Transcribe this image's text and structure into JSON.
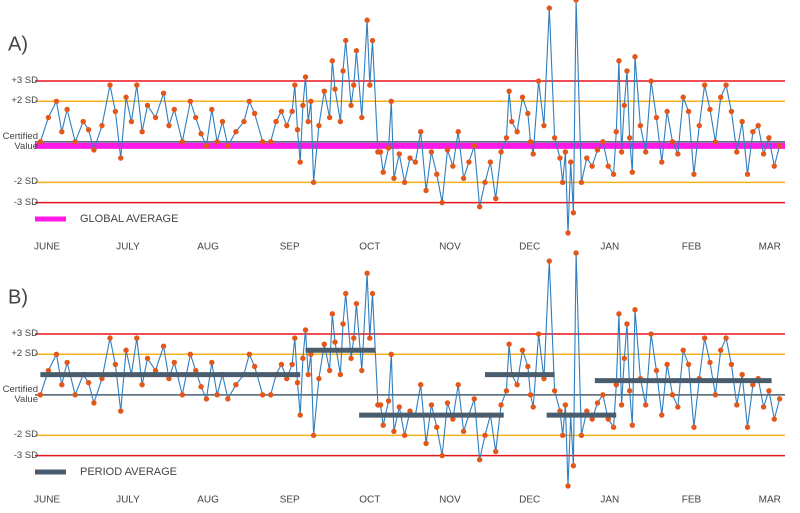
{
  "chart_data": [
    {
      "type": "line",
      "label": "A)",
      "x": [
        2,
        5,
        8,
        10,
        12,
        15,
        18,
        20,
        22,
        25,
        28,
        30,
        32,
        34,
        36,
        38,
        40,
        42,
        45,
        48,
        50,
        52,
        55,
        58,
        60,
        62,
        64,
        66,
        68,
        70,
        72,
        75,
        78,
        80,
        82,
        85,
        88,
        90,
        92,
        94,
        96,
        97,
        98,
        99,
        100,
        101,
        102,
        103,
        104,
        106,
        108,
        110,
        111,
        112,
        114,
        115,
        116,
        118,
        119,
        120,
        122,
        124,
        125,
        126,
        128,
        129,
        130,
        132,
        133,
        134,
        136,
        138,
        140,
        142,
        144,
        146,
        148,
        150,
        152,
        154,
        156,
        158,
        160,
        162,
        164,
        166,
        168,
        170,
        172,
        174,
        176,
        177,
        178,
        180,
        182,
        184,
        185,
        186,
        188,
        190,
        192,
        194,
        196,
        197,
        198,
        199,
        200,
        201,
        202,
        204,
        206,
        208,
        210,
        212,
        214,
        216,
        217,
        218,
        219,
        220,
        221,
        222,
        223,
        224,
        226,
        228,
        230,
        232,
        234,
        236,
        238,
        240,
        242,
        244,
        246,
        248,
        250,
        252,
        254,
        256,
        258,
        260,
        262,
        264,
        266,
        268,
        270,
        272,
        274,
        276,
        278
      ],
      "series": [
        {
          "color": "#2e7ec0",
          "marker_color": "#e4571b",
          "values": [
            0,
            1.2,
            2.0,
            0.5,
            1.6,
            0,
            1.0,
            0.6,
            -0.4,
            0.8,
            2.8,
            1.5,
            -0.8,
            2.2,
            1.0,
            2.8,
            0.5,
            1.8,
            1.2,
            2.4,
            0.8,
            1.6,
            0,
            2.0,
            1.2,
            0.4,
            -0.2,
            1.6,
            0,
            1.0,
            -0.2,
            0.5,
            1.0,
            2.0,
            1.4,
            0,
            0,
            1.0,
            1.5,
            0.8,
            1.5,
            2.8,
            0.6,
            -1.0,
            1.8,
            3.2,
            1.0,
            2.0,
            -2.0,
            0.8,
            2.5,
            1.2,
            4.0,
            2.6,
            1.0,
            3.5,
            5.0,
            1.8,
            2.8,
            4.5,
            1.2,
            6.0,
            2.8,
            5.0,
            -0.5,
            -0.5,
            -1.5,
            -0.3,
            2.0,
            -1.8,
            -0.6,
            -2.0,
            -0.8,
            -1.0,
            0.5,
            -2.4,
            -0.5,
            -1.6,
            -3.0,
            -0.4,
            -1.2,
            0.5,
            -1.8,
            -1.0,
            -0.2,
            -3.2,
            -2.0,
            -1.0,
            -2.8,
            -0.5,
            0.2,
            2.5,
            1.0,
            0.5,
            2.2,
            1.4,
            0,
            -0.6,
            3.0,
            0.8,
            6.6,
            0.2,
            -0.8,
            -2.0,
            -0.5,
            -4.5,
            -1.0,
            -3.5,
            7.0,
            -2.0,
            -0.8,
            -1.2,
            -0.4,
            0,
            -1.2,
            -1.6,
            0.5,
            4.0,
            -0.5,
            1.8,
            3.5,
            0.2,
            -1.5,
            4.2,
            0.8,
            -0.5,
            3.0,
            1.2,
            -1.0,
            1.5,
            0,
            -0.6,
            2.2,
            1.5,
            -1.6,
            0.8,
            2.8,
            1.6,
            0,
            2.2,
            2.8,
            1.5,
            -0.5,
            1.0,
            -1.6,
            0.5,
            0.8,
            -0.6,
            0.2,
            -1.2,
            -0.2
          ]
        }
      ],
      "xlim": [
        0,
        280
      ],
      "ylim": [
        -4.5,
        7
      ],
      "xticks": [
        {
          "value": 4.5,
          "label": "JUNE"
        },
        {
          "value": 34.7,
          "label": "JULY"
        },
        {
          "value": 64.6,
          "label": "AUG"
        },
        {
          "value": 95.1,
          "label": "SEP"
        },
        {
          "value": 125,
          "label": "OCT"
        },
        {
          "value": 154.9,
          "label": "NOV"
        },
        {
          "value": 184.7,
          "label": "DEC"
        },
        {
          "value": 214.6,
          "label": "JAN"
        },
        {
          "value": 245.1,
          "label": "FEB"
        },
        {
          "value": 274.3,
          "label": "MAR"
        }
      ],
      "yticks": [
        {
          "value": 3,
          "label": "+3 SD"
        },
        {
          "value": 2,
          "label": "+2 SD"
        },
        {
          "value": 0,
          "label": "Certified Value"
        },
        {
          "value": -2,
          "label": "-2 SD"
        },
        {
          "value": -3,
          "label": "-3 SD"
        }
      ],
      "ytick_colors": [
        "#e8141c",
        "#f5b01a",
        "#4a5d6e",
        "#f5b01a",
        "#e8141c"
      ],
      "average": {
        "name": "GLOBAL AVERAGE",
        "value": -0.2,
        "color": "#ff19e8"
      }
    },
    {
      "type": "line",
      "label": "B)",
      "x": [
        2,
        5,
        8,
        10,
        12,
        15,
        18,
        20,
        22,
        25,
        28,
        30,
        32,
        34,
        36,
        38,
        40,
        42,
        45,
        48,
        50,
        52,
        55,
        58,
        60,
        62,
        64,
        66,
        68,
        70,
        72,
        75,
        78,
        80,
        82,
        85,
        88,
        90,
        92,
        94,
        96,
        97,
        98,
        99,
        100,
        101,
        102,
        103,
        104,
        106,
        108,
        110,
        111,
        112,
        114,
        115,
        116,
        118,
        119,
        120,
        122,
        124,
        125,
        126,
        128,
        129,
        130,
        132,
        133,
        134,
        136,
        138,
        140,
        142,
        144,
        146,
        148,
        150,
        152,
        154,
        156,
        158,
        160,
        162,
        164,
        166,
        168,
        170,
        172,
        174,
        176,
        177,
        178,
        180,
        182,
        184,
        185,
        186,
        188,
        190,
        192,
        194,
        196,
        197,
        198,
        199,
        200,
        201,
        202,
        204,
        206,
        208,
        210,
        212,
        214,
        216,
        217,
        218,
        219,
        220,
        221,
        222,
        223,
        224,
        226,
        228,
        230,
        232,
        234,
        236,
        238,
        240,
        242,
        244,
        246,
        248,
        250,
        252,
        254,
        256,
        258,
        260,
        262,
        264,
        266,
        268,
        270,
        272,
        274,
        276,
        278
      ],
      "series": [
        {
          "color": "#2e7ec0",
          "marker_color": "#e4571b",
          "values": [
            0,
            1.2,
            2.0,
            0.5,
            1.6,
            0,
            1.0,
            0.6,
            -0.4,
            0.8,
            2.8,
            1.5,
            -0.8,
            2.2,
            1.0,
            2.8,
            0.5,
            1.8,
            1.2,
            2.4,
            0.8,
            1.6,
            0,
            2.0,
            1.2,
            0.4,
            -0.2,
            1.6,
            0,
            1.0,
            -0.2,
            0.5,
            1.0,
            2.0,
            1.4,
            0,
            0,
            1.0,
            1.5,
            0.8,
            1.5,
            2.8,
            0.6,
            -1.0,
            1.8,
            3.2,
            1.0,
            2.0,
            -2.0,
            0.8,
            2.5,
            1.2,
            4.0,
            2.6,
            1.0,
            3.5,
            5.0,
            1.8,
            2.8,
            4.5,
            1.2,
            6.0,
            2.8,
            5.0,
            -0.5,
            -0.5,
            -1.5,
            -0.3,
            2.0,
            -1.8,
            -0.6,
            -2.0,
            -0.8,
            -1.0,
            0.5,
            -2.4,
            -0.5,
            -1.6,
            -3.0,
            -0.4,
            -1.2,
            0.5,
            -1.8,
            -1.0,
            -0.2,
            -3.2,
            -2.0,
            -1.0,
            -2.8,
            -0.5,
            0.2,
            2.5,
            1.0,
            0.5,
            2.2,
            1.4,
            0,
            -0.6,
            3.0,
            0.8,
            6.6,
            0.2,
            -0.8,
            -2.0,
            -0.5,
            -4.5,
            -1.0,
            -3.5,
            7.0,
            -2.0,
            -0.8,
            -1.2,
            -0.4,
            0,
            -1.2,
            -1.6,
            0.5,
            4.0,
            -0.5,
            1.8,
            3.5,
            0.2,
            -1.5,
            4.2,
            0.8,
            -0.5,
            3.0,
            1.2,
            -1.0,
            1.5,
            0,
            -0.6,
            2.2,
            1.5,
            -1.6,
            0.8,
            2.8,
            1.6,
            0,
            2.2,
            2.8,
            1.5,
            -0.5,
            1.0,
            -1.6,
            0.5,
            0.8,
            -0.6,
            0.2,
            -1.2,
            -0.2
          ]
        }
      ],
      "xlim": [
        0,
        280
      ],
      "ylim": [
        -4.5,
        7
      ],
      "xticks": [
        {
          "value": 4.5,
          "label": "JUNE"
        },
        {
          "value": 34.7,
          "label": "JULY"
        },
        {
          "value": 64.6,
          "label": "AUG"
        },
        {
          "value": 95.1,
          "label": "SEP"
        },
        {
          "value": 125,
          "label": "OCT"
        },
        {
          "value": 154.9,
          "label": "NOV"
        },
        {
          "value": 184.7,
          "label": "DEC"
        },
        {
          "value": 214.6,
          "label": "JAN"
        },
        {
          "value": 245.1,
          "label": "FEB"
        },
        {
          "value": 274.3,
          "label": "MAR"
        }
      ],
      "yticks": [
        {
          "value": 3,
          "label": "+3 SD"
        },
        {
          "value": 2,
          "label": "+2 SD"
        },
        {
          "value": 0,
          "label": "Certified Value"
        },
        {
          "value": -2,
          "label": "-2 SD"
        },
        {
          "value": -3,
          "label": "-3 SD"
        }
      ],
      "ytick_colors": [
        "#e8141c",
        "#f5b01a",
        "#4a5d6e",
        "#f5b01a",
        "#e8141c"
      ],
      "averages": {
        "name": "PERIOD AVERAGE",
        "color": "#4a5d6e",
        "periods": [
          {
            "start": 2,
            "end": 99,
            "value": 1.0
          },
          {
            "start": 101,
            "end": 127,
            "value": 2.2
          },
          {
            "start": 121,
            "end": 175,
            "value": -1.0
          },
          {
            "start": 168,
            "end": 194,
            "value": 1.0
          },
          {
            "start": 191,
            "end": 217,
            "value": -1.0
          },
          {
            "start": 209,
            "end": 275,
            "value": 0.7
          }
        ]
      }
    }
  ]
}
